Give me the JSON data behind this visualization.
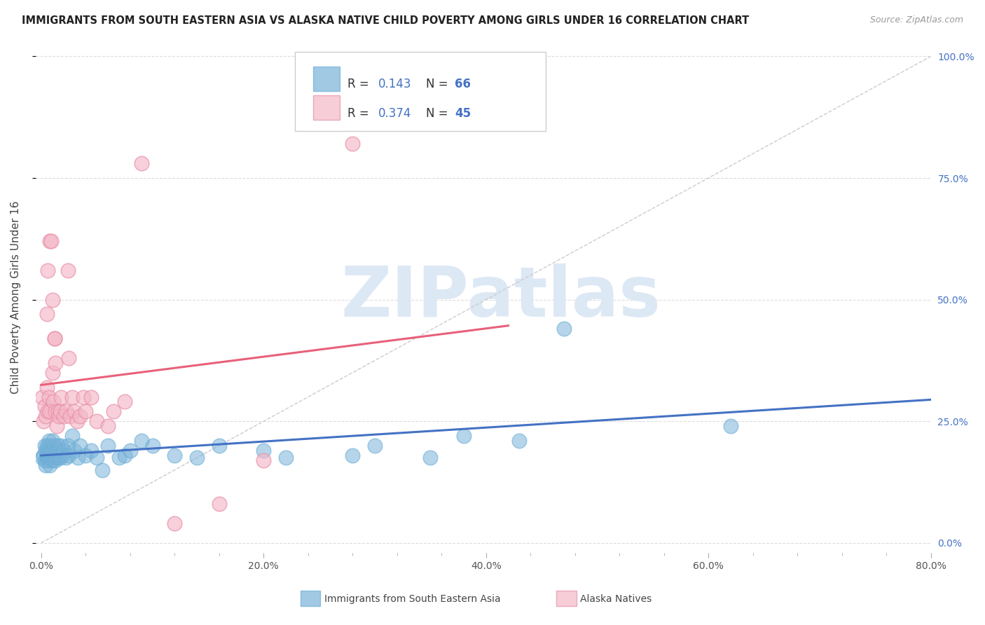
{
  "title": "IMMIGRANTS FROM SOUTH EASTERN ASIA VS ALASKA NATIVE CHILD POVERTY AMONG GIRLS UNDER 16 CORRELATION CHART",
  "source": "Source: ZipAtlas.com",
  "ylabel": "Child Poverty Among Girls Under 16",
  "xlabel_ticks": [
    "0.0%",
    "",
    "",
    "",
    "",
    "20.0%",
    "",
    "",
    "",
    "",
    "40.0%",
    "",
    "",
    "",
    "",
    "60.0%",
    "",
    "",
    "",
    "",
    "80.0%"
  ],
  "xlabel_vals": [
    0.0,
    0.04,
    0.08,
    0.12,
    0.16,
    0.2,
    0.24,
    0.28,
    0.32,
    0.36,
    0.4,
    0.44,
    0.48,
    0.52,
    0.56,
    0.6,
    0.64,
    0.68,
    0.72,
    0.76,
    0.8
  ],
  "xlabel_major_ticks": [
    0.0,
    0.2,
    0.4,
    0.6,
    0.8
  ],
  "xlabel_major_labels": [
    "0.0%",
    "20.0%",
    "40.0%",
    "60.0%",
    "80.0%"
  ],
  "yright_ticks": [
    0.0,
    0.25,
    0.5,
    0.75,
    1.0
  ],
  "yright_labels": [
    "0.0%",
    "25.0%",
    "50.0%",
    "75.0%",
    "100.0%"
  ],
  "xlim": [
    -0.005,
    0.8
  ],
  "ylim": [
    -0.02,
    1.03
  ],
  "series1_color": "#7ab3d9",
  "series1_edge": "#6baed6",
  "series1_label": "Immigrants from South Eastern Asia",
  "series1_R": "0.143",
  "series1_N": "66",
  "series2_color": "#f4b8c8",
  "series2_edge": "#e890a8",
  "series2_label": "Alaska Natives",
  "series2_R": "0.374",
  "series2_N": "45",
  "trend1_color": "#4472c4",
  "trend2_color": "#e8607a",
  "diag_color": "#cccccc",
  "legend_num_color": "#4472c4",
  "legend_label_color": "#333333",
  "watermark": "ZIPatlas",
  "watermark_color": "#dde8f5",
  "background_color": "#ffffff",
  "grid_color": "#dddddd",
  "series1_x": [
    0.001,
    0.002,
    0.003,
    0.003,
    0.004,
    0.004,
    0.005,
    0.005,
    0.005,
    0.006,
    0.006,
    0.007,
    0.007,
    0.007,
    0.008,
    0.008,
    0.008,
    0.009,
    0.009,
    0.01,
    0.01,
    0.01,
    0.011,
    0.011,
    0.012,
    0.012,
    0.013,
    0.013,
    0.014,
    0.015,
    0.015,
    0.016,
    0.016,
    0.017,
    0.018,
    0.019,
    0.02,
    0.022,
    0.024,
    0.025,
    0.028,
    0.03,
    0.033,
    0.035,
    0.04,
    0.045,
    0.05,
    0.055,
    0.06,
    0.07,
    0.075,
    0.08,
    0.09,
    0.1,
    0.12,
    0.14,
    0.16,
    0.2,
    0.22,
    0.28,
    0.3,
    0.35,
    0.38,
    0.43,
    0.47,
    0.62
  ],
  "series1_y": [
    0.175,
    0.18,
    0.17,
    0.2,
    0.16,
    0.19,
    0.175,
    0.18,
    0.2,
    0.17,
    0.19,
    0.175,
    0.18,
    0.21,
    0.16,
    0.175,
    0.2,
    0.18,
    0.19,
    0.17,
    0.175,
    0.21,
    0.18,
    0.19,
    0.175,
    0.2,
    0.17,
    0.18,
    0.19,
    0.175,
    0.2,
    0.18,
    0.19,
    0.175,
    0.2,
    0.18,
    0.19,
    0.175,
    0.2,
    0.18,
    0.22,
    0.19,
    0.175,
    0.2,
    0.18,
    0.19,
    0.175,
    0.15,
    0.2,
    0.175,
    0.18,
    0.19,
    0.21,
    0.2,
    0.18,
    0.175,
    0.2,
    0.19,
    0.175,
    0.18,
    0.2,
    0.175,
    0.22,
    0.21,
    0.44,
    0.24
  ],
  "series2_x": [
    0.001,
    0.002,
    0.003,
    0.004,
    0.005,
    0.005,
    0.006,
    0.006,
    0.007,
    0.008,
    0.008,
    0.009,
    0.01,
    0.01,
    0.011,
    0.012,
    0.012,
    0.013,
    0.013,
    0.014,
    0.015,
    0.016,
    0.017,
    0.018,
    0.02,
    0.022,
    0.024,
    0.025,
    0.026,
    0.028,
    0.03,
    0.032,
    0.035,
    0.038,
    0.04,
    0.045,
    0.05,
    0.06,
    0.065,
    0.075,
    0.09,
    0.12,
    0.16,
    0.2,
    0.28
  ],
  "series2_y": [
    0.3,
    0.25,
    0.28,
    0.26,
    0.32,
    0.47,
    0.27,
    0.56,
    0.3,
    0.27,
    0.62,
    0.62,
    0.35,
    0.5,
    0.29,
    0.42,
    0.42,
    0.27,
    0.37,
    0.24,
    0.27,
    0.26,
    0.27,
    0.3,
    0.26,
    0.27,
    0.56,
    0.38,
    0.26,
    0.3,
    0.27,
    0.25,
    0.26,
    0.3,
    0.27,
    0.3,
    0.25,
    0.24,
    0.27,
    0.29,
    0.78,
    0.04,
    0.08,
    0.17,
    0.82
  ]
}
